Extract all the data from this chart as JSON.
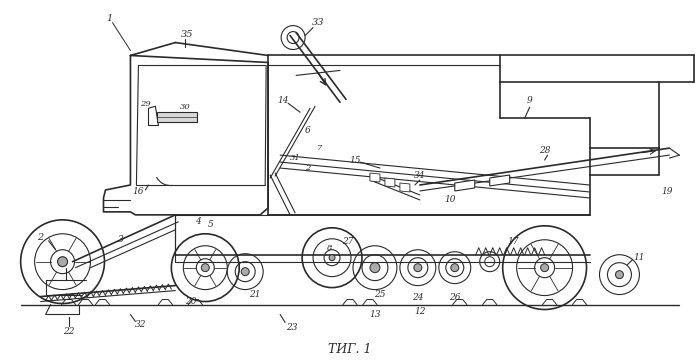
{
  "title": "ΤИГ. 1",
  "bg_color": "#ffffff",
  "line_color": "#2a2a2a",
  "figsize": [
    7.0,
    3.61
  ],
  "dpi": 100
}
